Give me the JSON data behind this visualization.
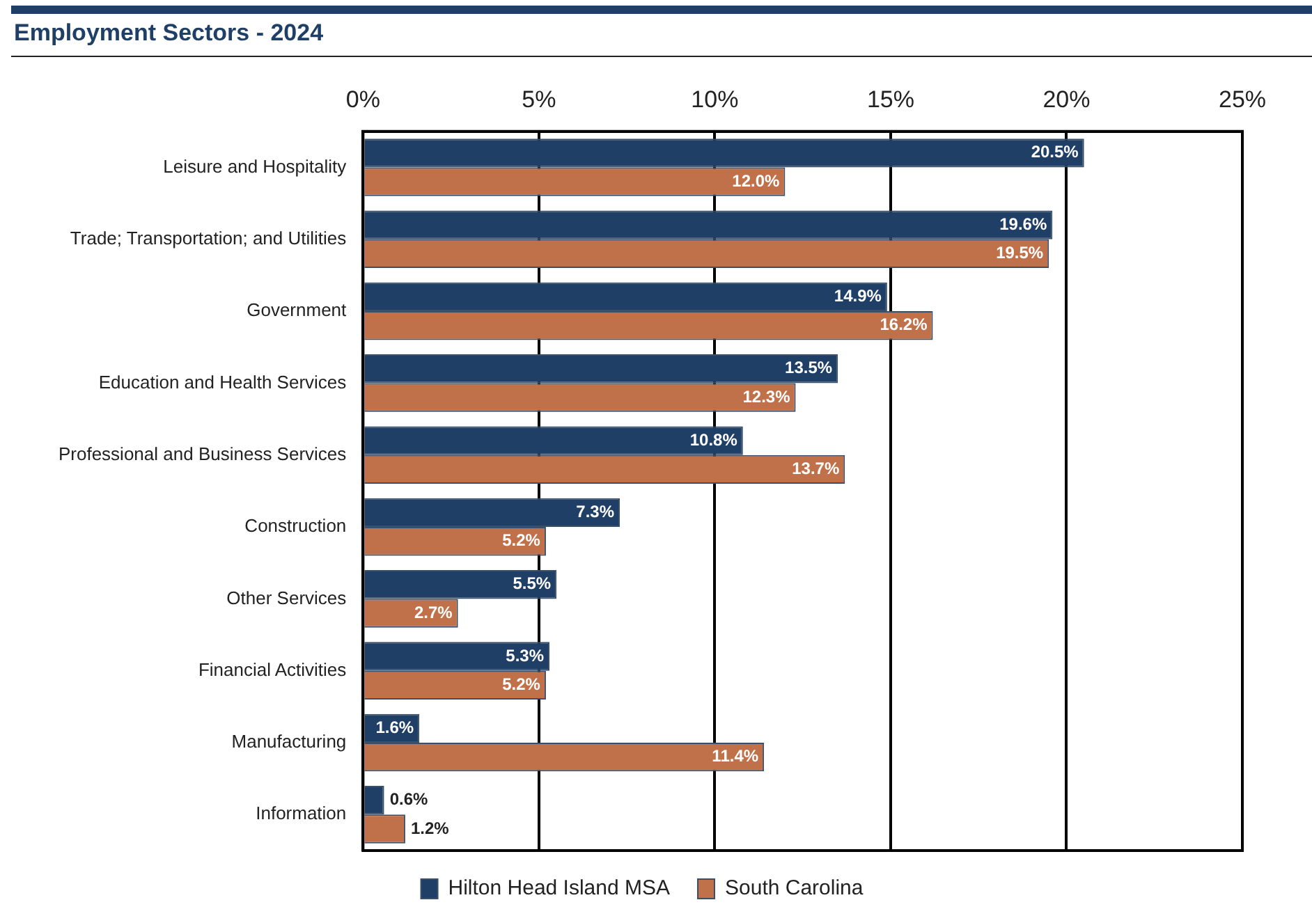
{
  "chart_data": {
    "type": "bar",
    "orientation": "horizontal",
    "title": "Employment Sectors - 2024",
    "categories": [
      "Leisure and Hospitality",
      "Trade; Transportation; and Utilities",
      "Government",
      "Education and Health Services",
      "Professional and Business Services",
      "Construction",
      "Other Services",
      "Financial Activities",
      "Manufacturing",
      "Information"
    ],
    "series": [
      {
        "name": "Hilton Head Island MSA",
        "color": "#1f3f66",
        "values": [
          20.5,
          19.6,
          14.9,
          13.5,
          10.8,
          7.3,
          5.5,
          5.3,
          1.6,
          0.6
        ],
        "value_labels": [
          "20.5%",
          "19.6%",
          "14.9%",
          "13.5%",
          "10.8%",
          "7.3%",
          "5.5%",
          "5.3%",
          "1.6%",
          "0.6%"
        ]
      },
      {
        "name": "South Carolina",
        "color": "#c0714a",
        "values": [
          12.0,
          19.5,
          16.2,
          12.3,
          13.7,
          5.2,
          2.7,
          5.2,
          11.4,
          1.2
        ],
        "value_labels": [
          "12.0%",
          "19.5%",
          "16.2%",
          "12.3%",
          "13.7%",
          "5.2%",
          "2.7%",
          "5.2%",
          "11.4%",
          "1.2%"
        ]
      }
    ],
    "xlim": [
      0,
      25
    ],
    "xticks": [
      {
        "value": 0,
        "label": "0%"
      },
      {
        "value": 5,
        "label": "5%"
      },
      {
        "value": 10,
        "label": "10%"
      },
      {
        "value": 15,
        "label": "15%"
      },
      {
        "value": 20,
        "label": "20%"
      },
      {
        "value": 25,
        "label": "25%"
      }
    ],
    "grid": "x",
    "legend": "bottom"
  }
}
